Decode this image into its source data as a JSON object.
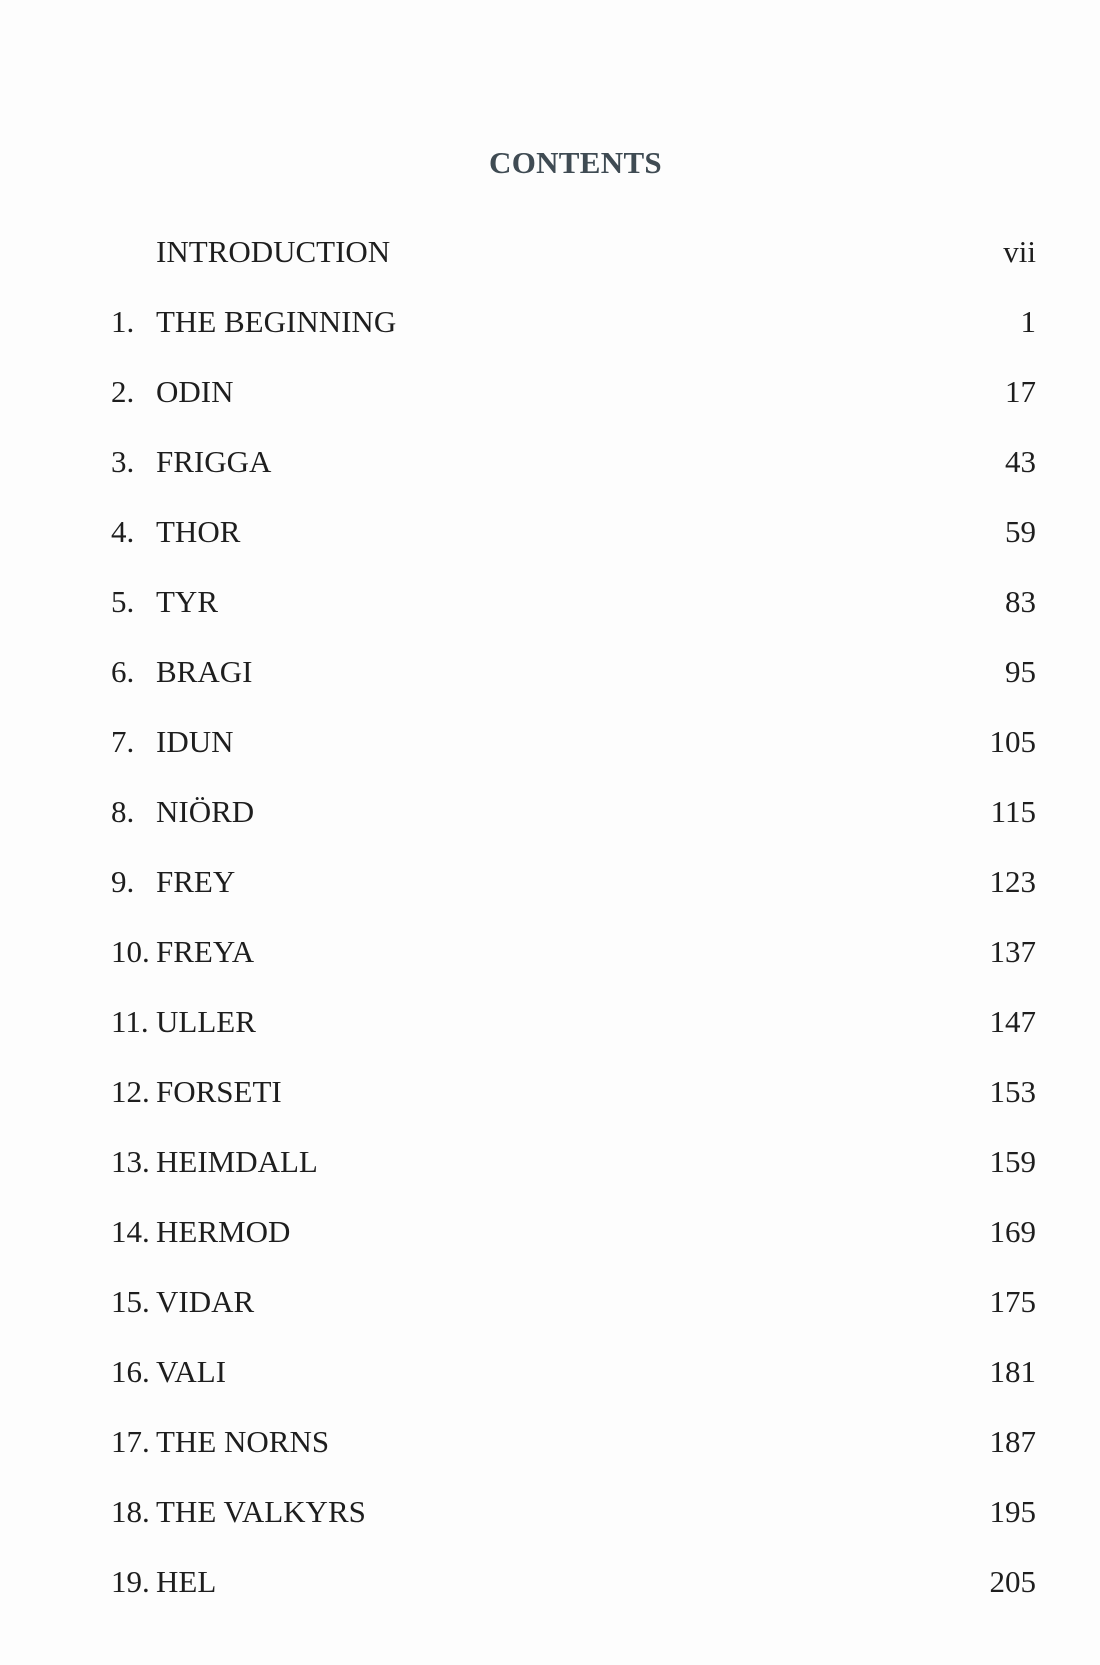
{
  "title": "CONTENTS",
  "entries": [
    {
      "num": "",
      "title": "INTRODUCTION",
      "page": "vii"
    },
    {
      "num": "1.",
      "title": "THE BEGINNING",
      "page": "1"
    },
    {
      "num": "2.",
      "title": "ODIN",
      "page": "17"
    },
    {
      "num": "3.",
      "title": "FRIGGA",
      "page": "43"
    },
    {
      "num": "4.",
      "title": "THOR",
      "page": "59"
    },
    {
      "num": "5.",
      "title": "TYR",
      "page": "83"
    },
    {
      "num": "6.",
      "title": "BRAGI",
      "page": "95"
    },
    {
      "num": "7.",
      "title": "IDUN",
      "page": "105"
    },
    {
      "num": "8.",
      "title": "NIÖRD",
      "page": "115"
    },
    {
      "num": "9.",
      "title": "FREY",
      "page": "123"
    },
    {
      "num": "10.",
      "title": "FREYA",
      "page": "137"
    },
    {
      "num": "11.",
      "title": "ULLER",
      "page": "147"
    },
    {
      "num": "12.",
      "title": "FORSETI",
      "page": "153"
    },
    {
      "num": "13.",
      "title": "HEIMDALL",
      "page": "159"
    },
    {
      "num": "14.",
      "title": "HERMOD",
      "page": "169"
    },
    {
      "num": "15.",
      "title": "VIDAR",
      "page": "175"
    },
    {
      "num": "16.",
      "title": "VALI",
      "page": "181"
    },
    {
      "num": "17.",
      "title": "THE NORNS",
      "page": "187"
    },
    {
      "num": "18.",
      "title": "THE VALKYRS",
      "page": "195"
    },
    {
      "num": "19.",
      "title": "HEL",
      "page": "205"
    }
  ]
}
